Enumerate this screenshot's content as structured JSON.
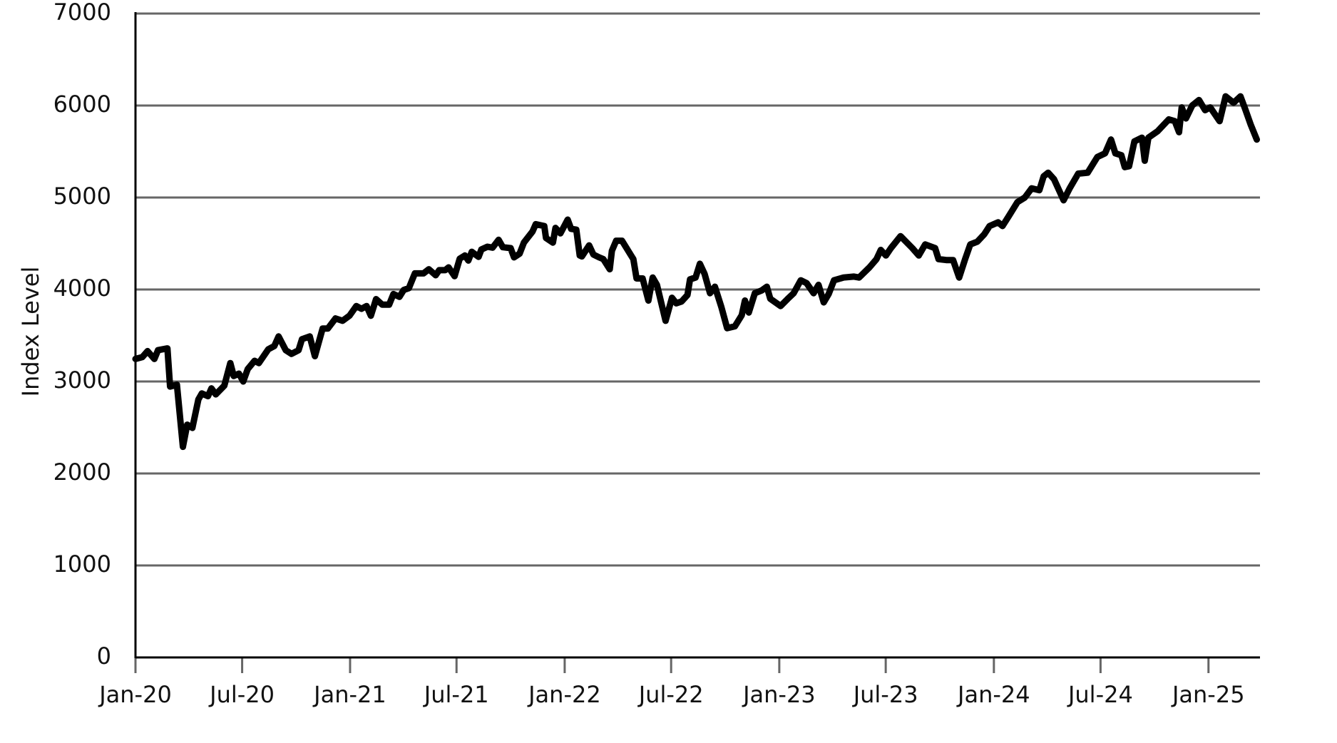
{
  "chart_data": {
    "type": "line",
    "y_label": "Index Level",
    "x": [
      2020.0,
      2020.032,
      2020.056,
      2020.088,
      2020.105,
      2020.149,
      2020.161,
      2020.193,
      2020.221,
      2020.241,
      2020.265,
      2020.293,
      2020.309,
      2020.338,
      2020.354,
      2020.374,
      2020.414,
      2020.442,
      2020.458,
      2020.482,
      2020.502,
      2020.523,
      2020.555,
      2020.575,
      2020.619,
      2020.647,
      2020.667,
      2020.7,
      2020.727,
      2020.76,
      2020.776,
      2020.812,
      2020.836,
      2020.872,
      2020.896,
      2020.932,
      2020.965,
      2020.997,
      2021.029,
      2021.053,
      2021.077,
      2021.097,
      2021.121,
      2021.15,
      2021.182,
      2021.202,
      2021.23,
      2021.25,
      2021.274,
      2021.302,
      2021.342,
      2021.367,
      2021.399,
      2021.415,
      2021.443,
      2021.459,
      2021.487,
      2021.511,
      2021.535,
      2021.551,
      2021.567,
      2021.599,
      2021.612,
      2021.64,
      2021.664,
      2021.692,
      2021.712,
      2021.748,
      2021.764,
      2021.79,
      2021.81,
      2021.85,
      2021.865,
      2021.905,
      2021.913,
      2021.945,
      2021.957,
      2021.98,
      2022.014,
      2022.03,
      2022.054,
      2022.07,
      2022.08,
      2022.114,
      2022.134,
      2022.16,
      2022.18,
      2022.21,
      2022.22,
      2022.24,
      2022.267,
      2022.32,
      2022.335,
      2022.363,
      2022.39,
      2022.41,
      2022.43,
      2022.47,
      2022.5,
      2022.52,
      2022.545,
      2022.572,
      2022.584,
      2022.61,
      2022.63,
      2022.652,
      2022.677,
      2022.7,
      2022.73,
      2022.757,
      2022.793,
      2022.825,
      2022.84,
      2022.858,
      2022.886,
      2022.918,
      2022.942,
      2022.958,
      2023.006,
      2023.04,
      2023.067,
      2023.1,
      2023.127,
      2023.16,
      2023.183,
      2023.207,
      2023.23,
      2023.255,
      2023.3,
      2023.348,
      2023.372,
      2023.42,
      2023.453,
      2023.473,
      2023.497,
      2023.52,
      2023.565,
      2023.62,
      2023.65,
      2023.68,
      2023.726,
      2023.742,
      2023.778,
      2023.81,
      2023.838,
      2023.866,
      2023.89,
      2023.923,
      2023.955,
      2023.98,
      2024.02,
      2024.04,
      2024.07,
      2024.11,
      2024.144,
      2024.176,
      2024.212,
      2024.232,
      2024.253,
      2024.28,
      2024.325,
      2024.353,
      2024.393,
      2024.437,
      2024.482,
      2024.518,
      2024.546,
      2024.566,
      2024.594,
      2024.61,
      2024.63,
      2024.655,
      2024.69,
      2024.703,
      2024.72,
      2024.763,
      2024.815,
      2024.843,
      2024.863,
      2024.875,
      2024.895,
      2024.924,
      2024.956,
      2024.984,
      2025.008,
      2025.052,
      2025.08,
      2025.117,
      2025.149,
      2025.173,
      2025.197,
      2025.225
    ],
    "series": [
      {
        "color": "#000000",
        "values": [
          3245,
          3265,
          3330,
          3245,
          3340,
          3360,
          2945,
          2965,
          2290,
          2530,
          2495,
          2805,
          2870,
          2840,
          2925,
          2860,
          2955,
          3200,
          3060,
          3085,
          3000,
          3135,
          3225,
          3200,
          3350,
          3385,
          3490,
          3340,
          3300,
          3340,
          3460,
          3490,
          3275,
          3575,
          3575,
          3685,
          3660,
          3715,
          3820,
          3790,
          3820,
          3715,
          3895,
          3835,
          3835,
          3950,
          3920,
          3995,
          4015,
          4175,
          4175,
          4220,
          4155,
          4210,
          4210,
          4240,
          4145,
          4335,
          4370,
          4315,
          4410,
          4355,
          4435,
          4465,
          4455,
          4540,
          4460,
          4450,
          4350,
          4390,
          4510,
          4630,
          4710,
          4690,
          4560,
          4510,
          4670,
          4610,
          4760,
          4660,
          4650,
          4370,
          4360,
          4480,
          4380,
          4350,
          4330,
          4220,
          4420,
          4530,
          4530,
          4330,
          4120,
          4120,
          3880,
          4130,
          4050,
          3660,
          3910,
          3850,
          3870,
          3940,
          4110,
          4130,
          4280,
          4170,
          3960,
          4030,
          3810,
          3580,
          3600,
          3720,
          3880,
          3750,
          3960,
          3990,
          4030,
          3900,
          3820,
          3900,
          3960,
          4100,
          4070,
          3960,
          4050,
          3860,
          3950,
          4100,
          4130,
          4140,
          4130,
          4240,
          4330,
          4430,
          4370,
          4450,
          4580,
          4450,
          4370,
          4490,
          4450,
          4330,
          4320,
          4320,
          4130,
          4330,
          4490,
          4520,
          4600,
          4690,
          4730,
          4690,
          4800,
          4950,
          5000,
          5100,
          5080,
          5230,
          5270,
          5200,
          4970,
          5100,
          5260,
          5270,
          5440,
          5480,
          5630,
          5480,
          5460,
          5330,
          5340,
          5610,
          5650,
          5400,
          5650,
          5720,
          5850,
          5830,
          5710,
          5980,
          5860,
          6000,
          6060,
          5950,
          5980,
          5830,
          6100,
          6030,
          6100,
          5950,
          5790,
          5630
        ]
      }
    ],
    "xlim": [
      2020,
      2025.24
    ],
    "xticks": [
      {
        "value": 2020.0,
        "label": "Jan-20"
      },
      {
        "value": 2020.497,
        "label": "Jul-20"
      },
      {
        "value": 2021.0,
        "label": "Jan-21"
      },
      {
        "value": 2021.496,
        "label": "Jul-21"
      },
      {
        "value": 2022.0,
        "label": "Jan-22"
      },
      {
        "value": 2022.496,
        "label": "Jul-22"
      },
      {
        "value": 2023.0,
        "label": "Jan-23"
      },
      {
        "value": 2023.496,
        "label": "Jul-23"
      },
      {
        "value": 2024.0,
        "label": "Jan-24"
      },
      {
        "value": 2024.497,
        "label": "Jul-24"
      },
      {
        "value": 2025.0,
        "label": "Jan-25"
      }
    ],
    "ylim": [
      0,
      7000
    ],
    "yticks": [
      0,
      1000,
      2000,
      3000,
      4000,
      5000,
      6000,
      7000
    ],
    "grid": true
  }
}
